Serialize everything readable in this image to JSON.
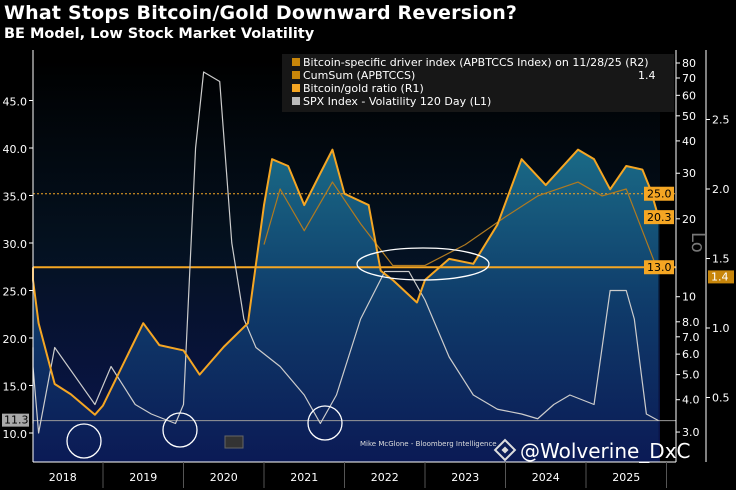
{
  "chart_data": {
    "type": "line",
    "title": "What Stops Bitcoin/Gold Downward Reversion?",
    "subtitle": "BE Model, Low Stock Market Volatility",
    "x_ticks": [
      "2018",
      "2019",
      "2020",
      "2021",
      "2022",
      "2023",
      "2024",
      "2025"
    ],
    "axes": {
      "L1": {
        "scale": "linear",
        "ticks": [
          "10.0",
          "15.0",
          "20.0",
          "25.0",
          "30.0",
          "35.0",
          "40.0",
          "45.0"
        ],
        "range": [
          8,
          49
        ]
      },
      "R1": {
        "scale": "log",
        "ticks": [
          "3.0",
          "4.0",
          "5.0",
          "6.0",
          "7.0",
          "8.0",
          "10",
          "20",
          "30",
          "40",
          "50",
          "60",
          "70",
          "80"
        ],
        "label": "Lo"
      },
      "R2": {
        "scale": "linear",
        "ticks": [
          "0.5",
          "1.0",
          "1.5",
          "2.0",
          "2.5"
        ]
      }
    },
    "legend": {
      "placement": "top-right",
      "entries": [
        {
          "name": "Bitcoin-specific driver index (APBTCCS Index) on 11/28/25 (R2)",
          "color": "#c8860a"
        },
        {
          "name": "CumSum (APBTCCS)",
          "color": "#c8860a",
          "value": "1.4"
        },
        {
          "name": "Bitcoin/gold ratio (R1)",
          "color": "#f5a623"
        },
        {
          "name": "SPX Index - Volatility 120 Day (L1)",
          "color": "#bbbbbb"
        }
      ]
    },
    "series": [
      {
        "name": "Bitcoin/gold ratio (R1)",
        "axis": "R1",
        "color": "#f5a623",
        "x": [
          2017.8,
          2018.0,
          2018.2,
          2018.4,
          2018.6,
          2018.9,
          2019.0,
          2019.3,
          2019.5,
          2019.7,
          2020.0,
          2020.2,
          2020.5,
          2020.8,
          2021.0,
          2021.1,
          2021.3,
          2021.5,
          2021.7,
          2021.85,
          2022.0,
          2022.3,
          2022.45,
          2022.6,
          2022.9,
          2023.0,
          2023.3,
          2023.6,
          2023.9,
          2024.2,
          2024.5,
          2024.9,
          2025.1,
          2025.3,
          2025.5,
          2025.7,
          2025.8,
          2025.9
        ],
        "y": [
          13,
          11.6,
          7.9,
          4.6,
          4.2,
          3.5,
          3.8,
          5.9,
          7.9,
          6.5,
          6.2,
          5,
          6.4,
          7.9,
          22.6,
          34,
          32,
          22.6,
          30,
          37,
          25,
          22.6,
          12.6,
          11.6,
          9.5,
          11.6,
          14,
          13.4,
          19,
          34,
          27,
          37,
          34,
          26,
          32,
          31,
          26,
          20.3
        ]
      },
      {
        "name": "CumSum (APBTCCS)",
        "axis": "R2",
        "color": "#b07a20",
        "x": [
          2021.0,
          2021.2,
          2021.5,
          2021.85,
          2022.2,
          2022.6,
          2023.0,
          2023.5,
          2024.0,
          2024.4,
          2024.9,
          2025.2,
          2025.5,
          2025.7,
          2025.9
        ],
        "y": [
          1.6,
          2.0,
          1.7,
          2.05,
          1.75,
          1.45,
          1.45,
          1.6,
          1.8,
          1.95,
          2.05,
          1.95,
          2.0,
          1.7,
          1.4
        ]
      },
      {
        "name": "SPX Index - Volatility 120 Day (L1)",
        "axis": "L1",
        "color": "#cccccc",
        "x": [
          2017.8,
          2018.0,
          2018.1,
          2018.2,
          2018.4,
          2018.9,
          2019.1,
          2019.4,
          2019.6,
          2019.9,
          2020.0,
          2020.15,
          2020.25,
          2020.45,
          2020.6,
          2020.75,
          2020.9,
          2021.2,
          2021.5,
          2021.7,
          2021.9,
          2022.2,
          2022.5,
          2022.8,
          2023.0,
          2023.3,
          2023.6,
          2023.9,
          2024.2,
          2024.4,
          2024.6,
          2024.8,
          2025.1,
          2025.3,
          2025.5,
          2025.6,
          2025.75,
          2025.9
        ],
        "y": [
          11,
          19,
          17,
          10,
          19,
          13,
          17,
          13,
          12,
          11,
          13,
          40,
          48,
          47,
          30,
          22,
          19,
          17,
          14,
          11,
          14,
          22,
          27,
          27,
          24,
          18,
          14,
          12.5,
          12,
          11.5,
          13,
          14,
          13,
          25,
          25,
          22,
          12,
          11.3
        ]
      }
    ],
    "reference_lines": [
      {
        "axis": "R1",
        "value": 13.0,
        "label": "13.0",
        "style": "solid",
        "color": "#f5a623"
      },
      {
        "axis": "R1",
        "value": 25.0,
        "label": "25.0",
        "style": "dotted",
        "color": "#f5a623"
      },
      {
        "axis": "L1",
        "value": 11.3,
        "label": "11.3",
        "style": "solid",
        "color": "#999999"
      }
    ],
    "last_value_labels": [
      {
        "axis": "R1",
        "label": "20.3"
      },
      {
        "axis": "R2",
        "label": "1.4"
      }
    ],
    "annotations": [
      "Mike McGlone - Bloomberg Intelligence",
      "@Wolverine_DxC"
    ]
  }
}
